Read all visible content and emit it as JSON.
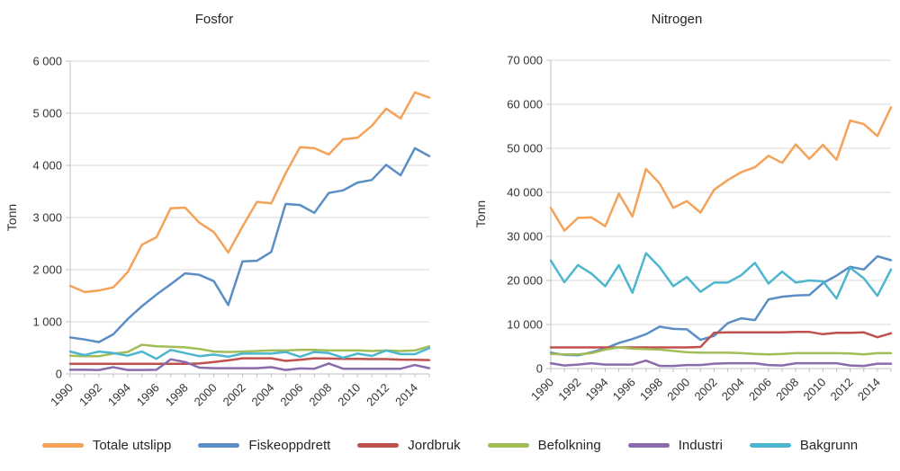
{
  "chart_data": [
    {
      "type": "line",
      "title": "Fosfor",
      "xlabel": "",
      "ylabel": "Tonn",
      "ylim": [
        0,
        6000
      ],
      "ytick_step": 1000,
      "grid": true,
      "y_tick_labels": [
        "0",
        "1 000",
        "2 000",
        "3 000",
        "4 000",
        "5 000",
        "6 000"
      ],
      "x_tick_labels": [
        "1990",
        "1992",
        "1994",
        "1996",
        "1998",
        "2000",
        "2002",
        "2004",
        "2006",
        "2008",
        "2010",
        "2012",
        "2014"
      ],
      "x": [
        1990,
        1991,
        1992,
        1993,
        1994,
        1995,
        1996,
        1997,
        1998,
        1999,
        2000,
        2001,
        2002,
        2003,
        2004,
        2005,
        2006,
        2007,
        2008,
        2009,
        2010,
        2011,
        2012,
        2013,
        2014,
        2015
      ],
      "series": [
        {
          "name": "Totale utslipp",
          "values": [
            1690,
            1570,
            1600,
            1660,
            1950,
            2480,
            2620,
            3180,
            3190,
            2900,
            2720,
            2330,
            2830,
            3300,
            3270,
            3850,
            4350,
            4330,
            4210,
            4500,
            4530,
            4760,
            5090,
            4900,
            5400,
            5300
          ]
        },
        {
          "name": "Fiskeoppdrett",
          "values": [
            700,
            660,
            610,
            760,
            1050,
            1300,
            1520,
            1720,
            1930,
            1900,
            1780,
            1320,
            2160,
            2170,
            2340,
            3260,
            3240,
            3090,
            3470,
            3520,
            3670,
            3720,
            4010,
            3810,
            4330,
            4180
          ]
        },
        {
          "name": "Jordbruk",
          "values": [
            195,
            195,
            195,
            195,
            195,
            195,
            195,
            195,
            195,
            200,
            230,
            260,
            300,
            300,
            300,
            250,
            270,
            300,
            295,
            290,
            290,
            285,
            285,
            275,
            270,
            265
          ]
        },
        {
          "name": "Befolkning",
          "values": [
            350,
            340,
            340,
            390,
            420,
            560,
            530,
            520,
            510,
            480,
            430,
            420,
            430,
            440,
            450,
            450,
            460,
            460,
            450,
            450,
            450,
            440,
            450,
            440,
            450,
            530
          ]
        },
        {
          "name": "Industri",
          "values": [
            80,
            80,
            75,
            130,
            75,
            75,
            80,
            280,
            230,
            120,
            110,
            110,
            110,
            110,
            130,
            75,
            105,
            100,
            200,
            100,
            100,
            100,
            100,
            100,
            170,
            110
          ]
        },
        {
          "name": "Bakgrunn",
          "values": [
            430,
            360,
            430,
            400,
            350,
            430,
            290,
            460,
            400,
            340,
            370,
            330,
            390,
            390,
            390,
            420,
            330,
            420,
            400,
            310,
            390,
            345,
            450,
            380,
            380,
            495
          ]
        }
      ]
    },
    {
      "type": "line",
      "title": "Nitrogen",
      "xlabel": "",
      "ylabel": "Tonn",
      "ylim": [
        0,
        70000
      ],
      "ytick_step": 10000,
      "grid": true,
      "y_tick_labels": [
        "0",
        "10 000",
        "20 000",
        "30 000",
        "40 000",
        "50 000",
        "60 000",
        "70 000"
      ],
      "x_tick_labels": [
        "1990",
        "1992",
        "1994",
        "1996",
        "1998",
        "2000",
        "2002",
        "2004",
        "2006",
        "2008",
        "2010",
        "2012",
        "2014"
      ],
      "x": [
        1990,
        1991,
        1992,
        1993,
        1994,
        1995,
        1996,
        1997,
        1998,
        1999,
        2000,
        2001,
        2002,
        2003,
        2004,
        2005,
        2006,
        2007,
        2008,
        2009,
        2010,
        2011,
        2012,
        2013,
        2014,
        2015
      ],
      "series": [
        {
          "name": "Totale utslipp",
          "values": [
            36500,
            31300,
            34200,
            34300,
            32300,
            39700,
            34500,
            45300,
            42000,
            36500,
            38000,
            35400,
            40600,
            42800,
            44600,
            45700,
            48300,
            46700,
            50900,
            47600,
            50800,
            47400,
            56300,
            55500,
            52800,
            59300
          ]
        },
        {
          "name": "Fiskeoppdrett",
          "values": [
            3600,
            3100,
            3000,
            3700,
            4600,
            5800,
            6700,
            7800,
            9500,
            9000,
            8900,
            6500,
            7400,
            10300,
            11400,
            11000,
            15700,
            16300,
            16600,
            16700,
            19400,
            21100,
            23100,
            22500,
            25500,
            24600
          ]
        },
        {
          "name": "Jordbruk",
          "values": [
            4800,
            4800,
            4800,
            4800,
            4800,
            4800,
            4800,
            4800,
            4800,
            4800,
            4800,
            4900,
            8100,
            8200,
            8200,
            8200,
            8200,
            8200,
            8300,
            8300,
            7800,
            8100,
            8100,
            8200,
            7100,
            8000
          ]
        },
        {
          "name": "Befolkning",
          "values": [
            3300,
            3200,
            3200,
            3500,
            4300,
            4800,
            4500,
            4400,
            4300,
            4000,
            3700,
            3600,
            3600,
            3600,
            3500,
            3300,
            3200,
            3300,
            3500,
            3500,
            3500,
            3500,
            3400,
            3200,
            3500,
            3500
          ]
        },
        {
          "name": "Industri",
          "values": [
            1200,
            700,
            900,
            1200,
            900,
            900,
            900,
            1800,
            600,
            600,
            800,
            800,
            1100,
            1200,
            1200,
            1200,
            800,
            700,
            1200,
            1200,
            1200,
            1200,
            700,
            600,
            1100,
            1100
          ]
        },
        {
          "name": "Bakgrunn",
          "values": [
            24500,
            19600,
            23500,
            21500,
            18700,
            23500,
            17200,
            26200,
            23000,
            18700,
            20800,
            17400,
            19500,
            19500,
            21200,
            24000,
            19300,
            22000,
            19500,
            20000,
            19800,
            15900,
            22900,
            20500,
            16500,
            22500
          ]
        }
      ]
    }
  ],
  "legend": {
    "position": "bottom",
    "items": [
      {
        "label": "Totale utslipp",
        "color": "#F4A258"
      },
      {
        "label": "Fiskeoppdrett",
        "color": "#5B8EC4"
      },
      {
        "label": "Jordbruk",
        "color": "#C0504D"
      },
      {
        "label": "Befolkning",
        "color": "#A2BD58"
      },
      {
        "label": "Industri",
        "color": "#8A6BAC"
      },
      {
        "label": "Bakgrunn",
        "color": "#4DB6CE"
      }
    ]
  }
}
